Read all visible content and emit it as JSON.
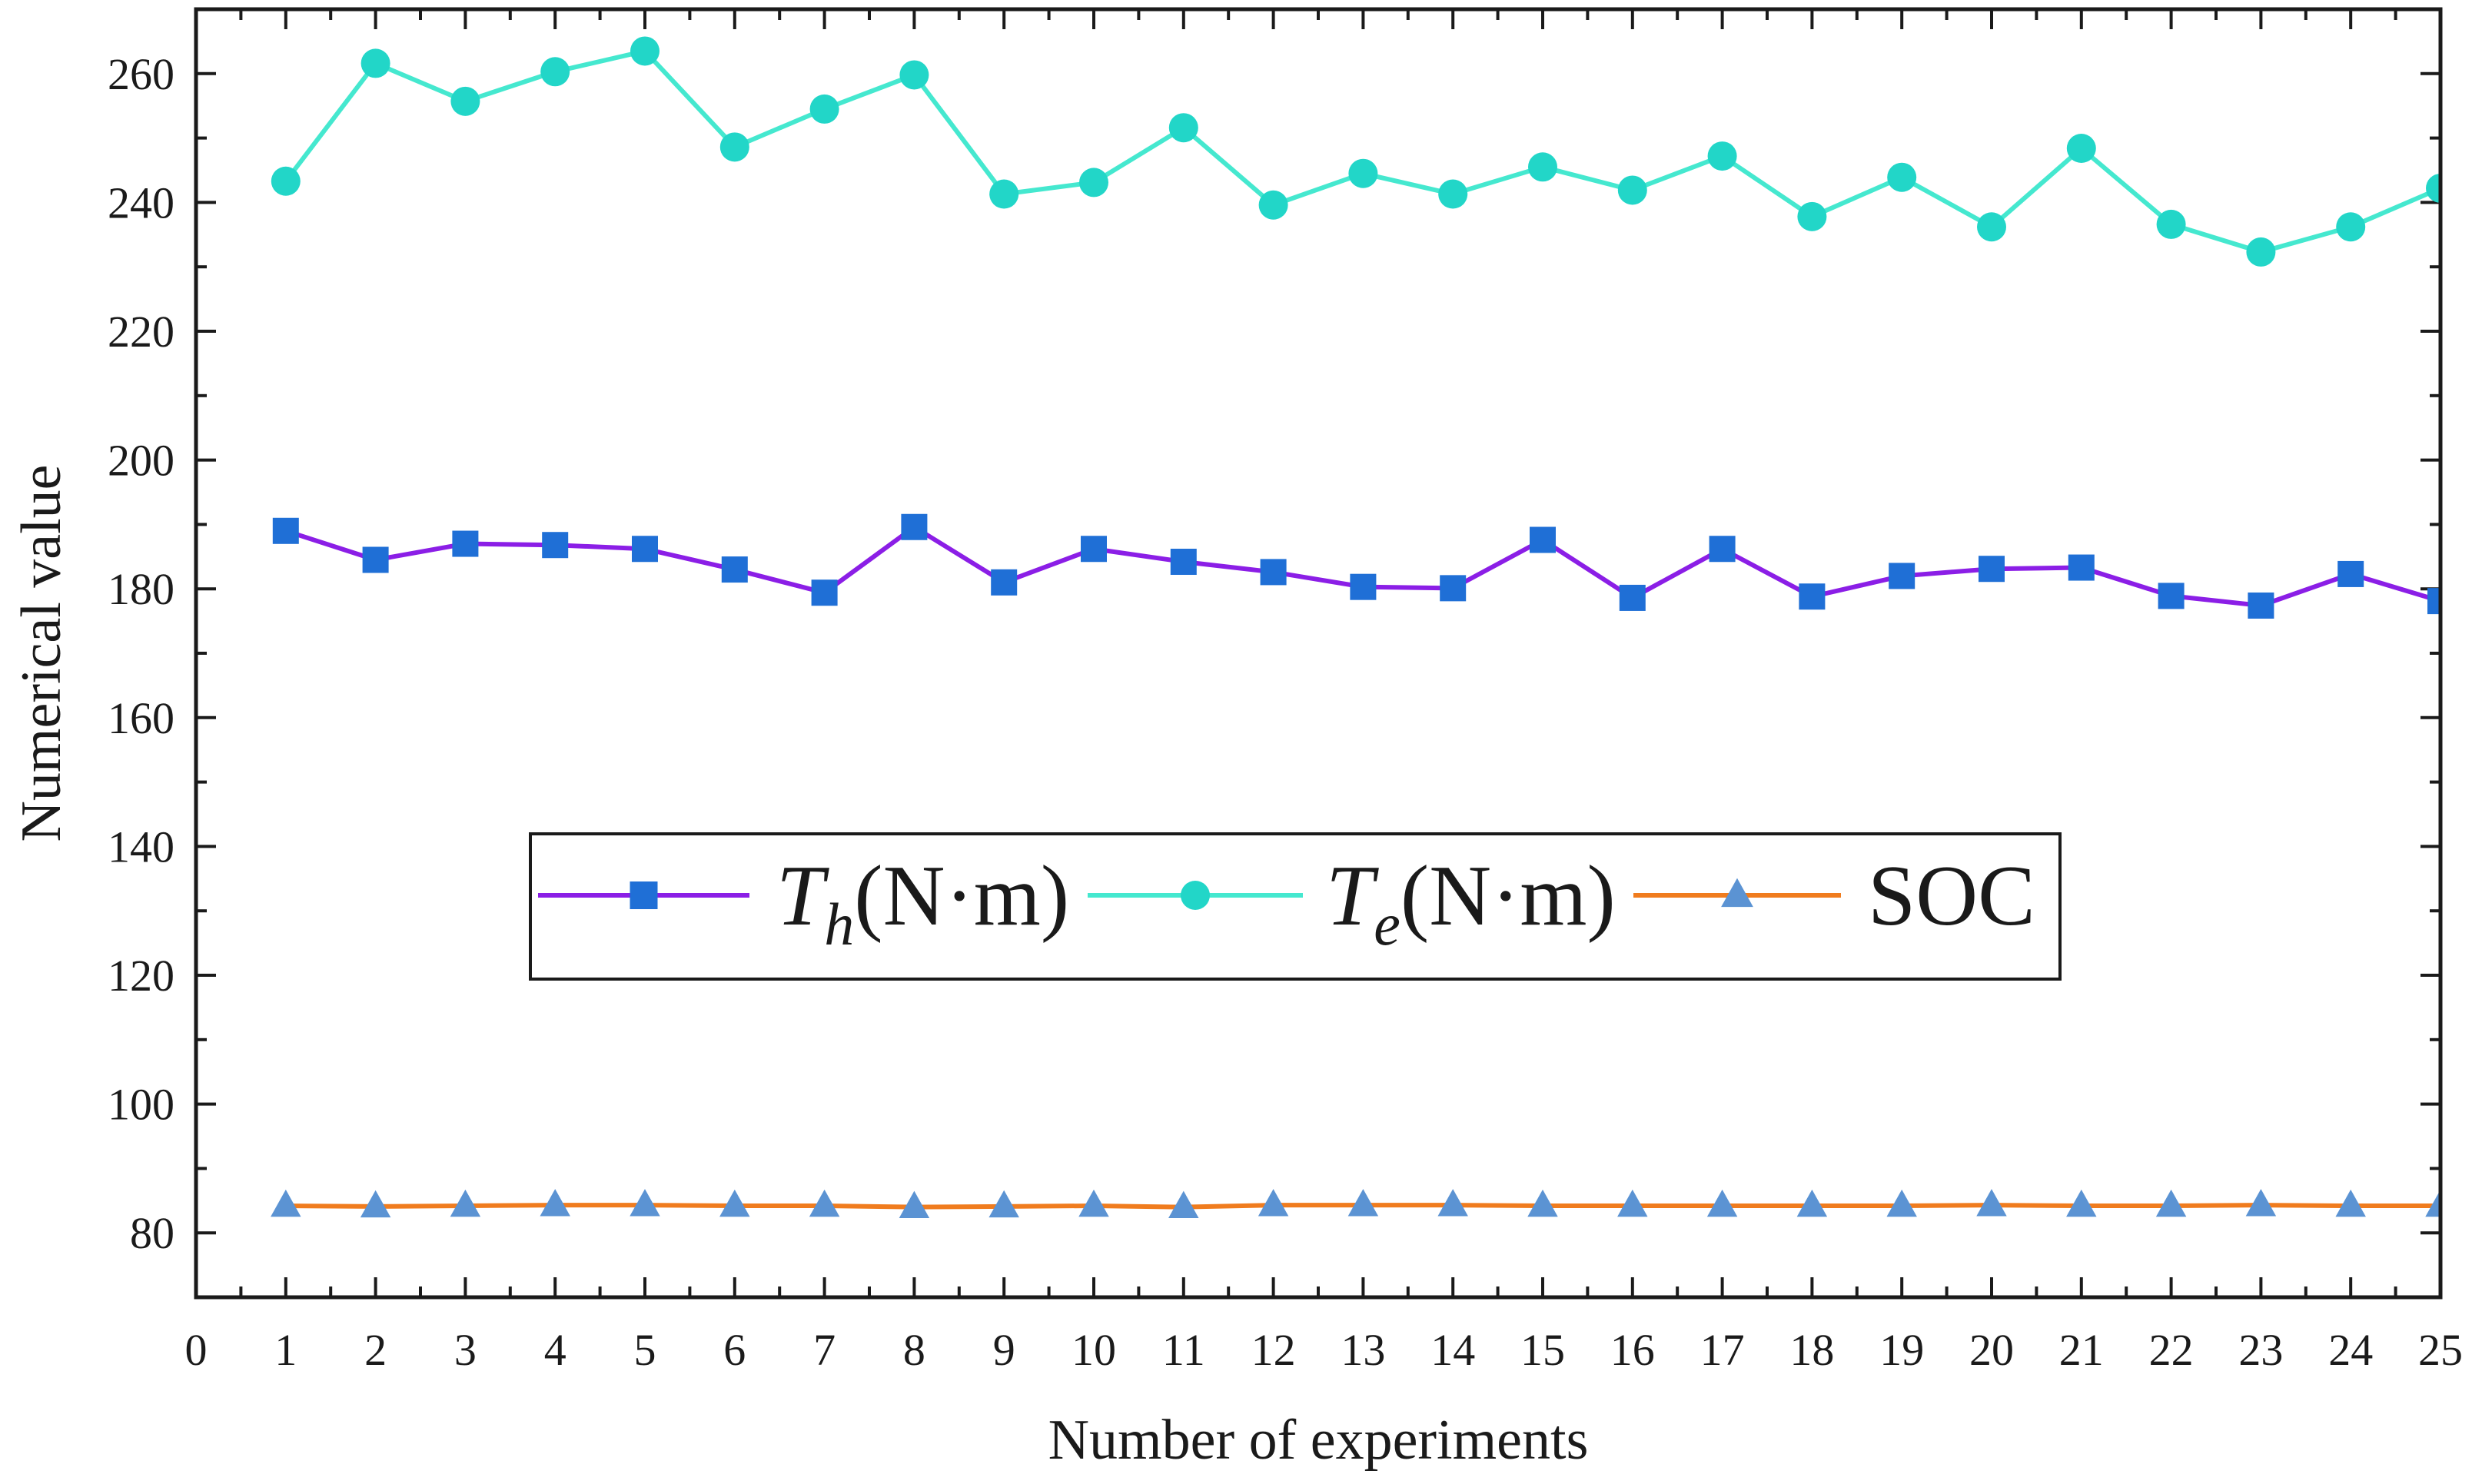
{
  "chart_data": {
    "type": "line",
    "title": "",
    "xlabel": "Number of experiments",
    "ylabel": "Numerical value",
    "xlim": [
      0,
      25
    ],
    "ylim": [
      70,
      270
    ],
    "xticks": [
      0,
      1,
      2,
      3,
      4,
      5,
      6,
      7,
      8,
      9,
      10,
      11,
      12,
      13,
      14,
      15,
      16,
      17,
      18,
      19,
      20,
      21,
      22,
      23,
      24,
      25
    ],
    "yticks": [
      80,
      100,
      120,
      140,
      160,
      180,
      200,
      220,
      240,
      260
    ],
    "x": [
      1,
      2,
      3,
      4,
      5,
      6,
      7,
      8,
      9,
      10,
      11,
      12,
      13,
      14,
      15,
      16,
      17,
      18,
      19,
      20,
      21,
      22,
      23,
      24,
      25
    ],
    "grid": false,
    "legend_position": "center",
    "series": [
      {
        "name": "Th(N·m)",
        "legend_main": "T",
        "legend_sub": "h",
        "legend_unit": "(N·m)",
        "line_color": "#8b1ee6",
        "marker_color": "#1f6fd6",
        "marker": "square",
        "values": [
          189,
          184.5,
          187,
          186.8,
          186.2,
          183,
          179.4,
          189.6,
          181,
          186.2,
          184.2,
          182.6,
          180.3,
          180.1,
          187.6,
          178.6,
          186.2,
          178.8,
          182,
          183.1,
          183.3,
          178.9,
          177.4,
          182.3,
          178.1
        ]
      },
      {
        "name": "Te(N·m)",
        "legend_main": "T",
        "legend_sub": "e",
        "legend_unit": "(N·m)",
        "line_color": "#45e8cf",
        "marker_color": "#22d6c8",
        "marker": "circle",
        "values": [
          243.3,
          261.6,
          255.7,
          260.3,
          263.5,
          248.6,
          254.5,
          259.8,
          241.3,
          243.1,
          251.6,
          239.6,
          244.5,
          241.3,
          245.5,
          241.9,
          247.2,
          237.8,
          243.9,
          236.2,
          248.4,
          236.6,
          232.3,
          236.2,
          242.2
        ]
      },
      {
        "name": "SOC",
        "legend_main": "SOC",
        "legend_sub": "",
        "legend_unit": "",
        "line_color": "#f07c1e",
        "marker_color": "#5b93d3",
        "marker": "triangle",
        "values": [
          84.2,
          84.1,
          84.2,
          84.3,
          84.3,
          84.2,
          84.2,
          84.0,
          84.1,
          84.2,
          84.0,
          84.3,
          84.3,
          84.3,
          84.2,
          84.2,
          84.2,
          84.2,
          84.2,
          84.3,
          84.2,
          84.2,
          84.3,
          84.2,
          84.2
        ]
      }
    ]
  }
}
